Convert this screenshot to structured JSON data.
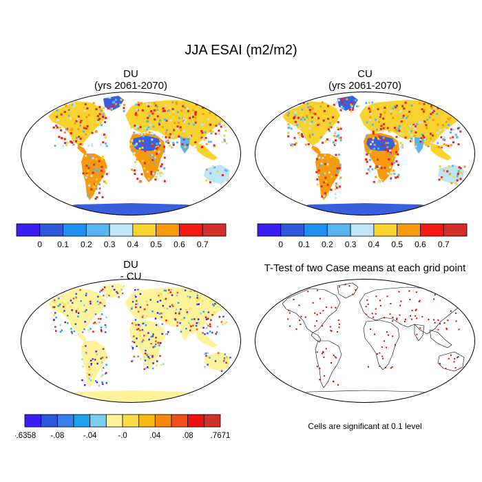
{
  "main_title": "JJA ESAI (m2/m2)",
  "panels": {
    "du": {
      "title_line1": "DU",
      "title_line2": "(yrs 2061-2070)"
    },
    "cu": {
      "title_line1": "CU",
      "title_line2": "(yrs 2061-2070)"
    },
    "diff": {
      "title_line1": "DU",
      "title_line2": "- CU"
    },
    "ttest": {
      "title": "T-Test of two Case means at each grid point",
      "note": "Cells are significant at 0.1 level"
    }
  },
  "colorbar_main": {
    "colors": [
      "#3b1ef0",
      "#3058dc",
      "#1e8ef0",
      "#5ab4ee",
      "#bfe6f5",
      "#f8d22e",
      "#f89a0e",
      "#f21a12",
      "#d22e2a"
    ],
    "labels": [
      "0",
      "0.1",
      "0.2",
      "0.3",
      "0.4",
      "0.5",
      "0.6",
      "0.7"
    ]
  },
  "colorbar_diff": {
    "colors": [
      "#3b1ef0",
      "#2d54dc",
      "#3a7ee8",
      "#1ea2ee",
      "#7ccdf2",
      "#fcf39a",
      "#f8dc4a",
      "#f8b812",
      "#f8880e",
      "#f2501a",
      "#ee1010",
      "#d2302a"
    ],
    "labels": [
      ".6358",
      ".08",
      ".04",
      ".0",
      ".04",
      ".08",
      ".7671"
    ],
    "label_signs": [
      "-",
      "-",
      "-",
      "-",
      "",
      "",
      ""
    ]
  },
  "map_colors": {
    "ocean": "#ffffff",
    "greenland_antarctica_cold": "#3a5fdc",
    "sahara_cold": "#3a5fdc",
    "warm": "#f8d22e",
    "hot": "#f89a0e",
    "very_hot": "#f21a12",
    "cool": "#5ab4ee",
    "diff_land": "#fcf39a",
    "diff_cool": "#7ccdf2",
    "sig": "#d40000"
  }
}
